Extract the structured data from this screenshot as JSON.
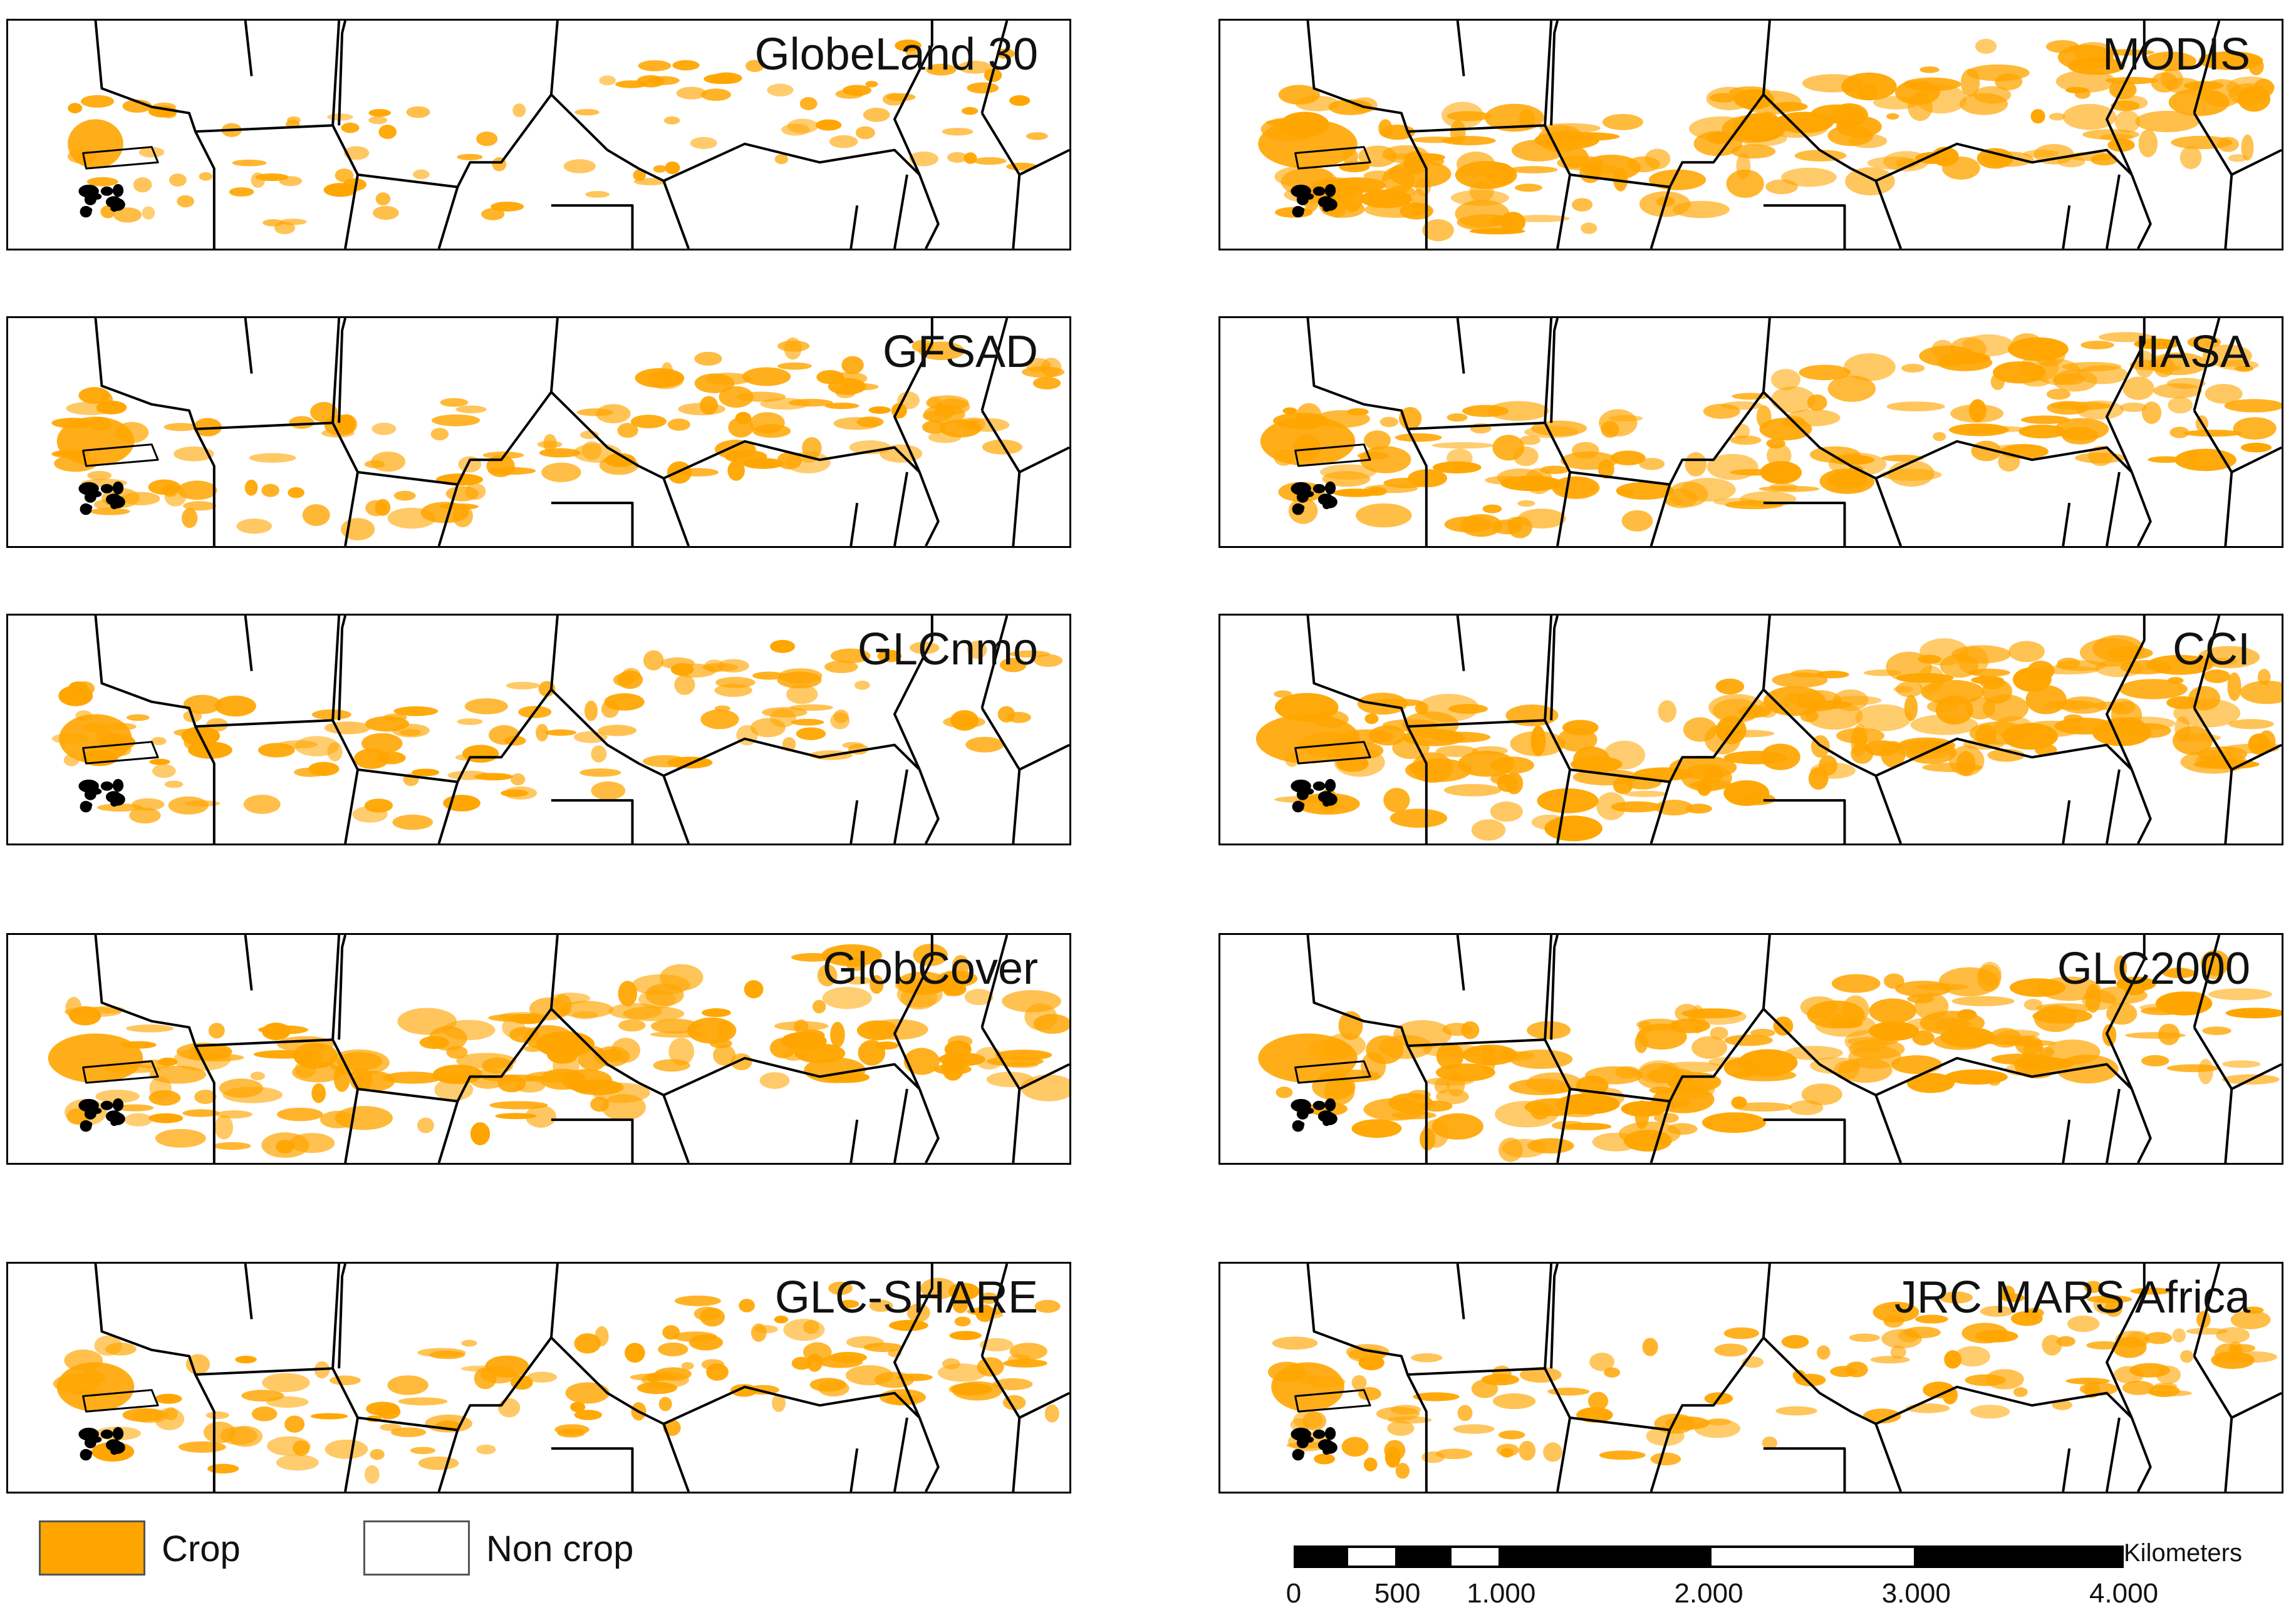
{
  "panels": [
    {
      "title": "GlobeLand 30",
      "col": 0,
      "row": 0,
      "intensity": 0.35
    },
    {
      "title": "MODIS",
      "col": 1,
      "row": 0,
      "intensity": 0.85
    },
    {
      "title": "GFSAD",
      "col": 0,
      "row": 1,
      "intensity": 0.6
    },
    {
      "title": "IIASA",
      "col": 1,
      "row": 1,
      "intensity": 0.8
    },
    {
      "title": "GLCnmo",
      "col": 0,
      "row": 2,
      "intensity": 0.55
    },
    {
      "title": "CCI",
      "col": 1,
      "row": 2,
      "intensity": 0.9
    },
    {
      "title": "GlobCover",
      "col": 0,
      "row": 3,
      "intensity": 0.8
    },
    {
      "title": "GLC2000",
      "col": 1,
      "row": 3,
      "intensity": 0.85
    },
    {
      "title": "GLC-SHARE",
      "col": 0,
      "row": 4,
      "intensity": 0.6
    },
    {
      "title": "JRC MARS Africa",
      "col": 1,
      "row": 4,
      "intensity": 0.55
    }
  ],
  "legend": {
    "crop_label": "Crop",
    "noncrop_label": "Non crop",
    "crop_color": "#FFA500",
    "noncrop_color": "#FFFFFF"
  },
  "scalebar": {
    "unit": "Kilometers",
    "ticks": [
      "0",
      "500",
      "1.000",
      "2.000",
      "3.000",
      "4.000"
    ],
    "tick_values": [
      0,
      500,
      1000,
      2000,
      3000,
      4000
    ]
  }
}
